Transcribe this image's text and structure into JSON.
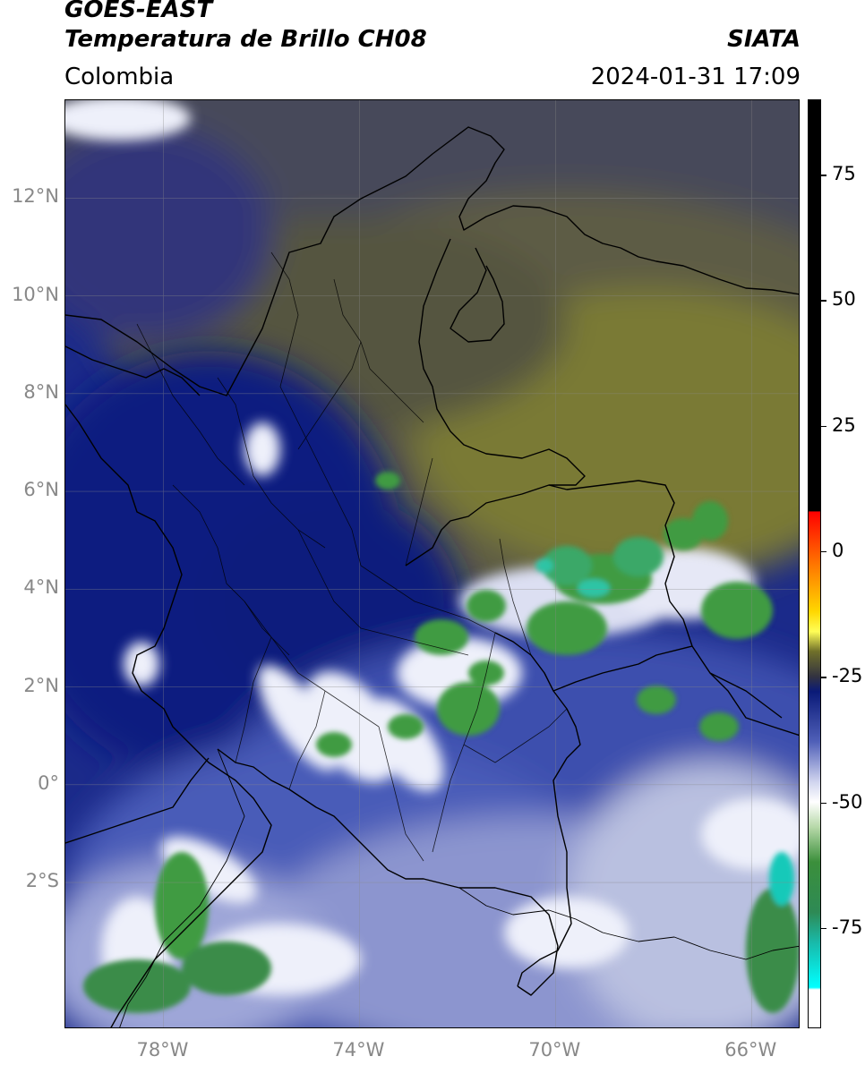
{
  "header": {
    "satellite": "GOES-EAST",
    "product": "Temperatura de Brillo CH08",
    "agency": "SIATA",
    "region": "Colombia",
    "datetime": "2024-01-31 17:09"
  },
  "map": {
    "lat_range": [
      -5.0,
      14.0
    ],
    "lon_range": [
      -80.0,
      -65.0
    ],
    "lat_ticks": [
      {
        "value": 12,
        "label": "12°N"
      },
      {
        "value": 10,
        "label": "10°N"
      },
      {
        "value": 8,
        "label": "8°N"
      },
      {
        "value": 6,
        "label": "6°N"
      },
      {
        "value": 4,
        "label": "4°N"
      },
      {
        "value": 2,
        "label": "2°N"
      },
      {
        "value": 0,
        "label": "0°"
      },
      {
        "value": -2,
        "label": "2°S"
      }
    ],
    "lon_ticks": [
      {
        "value": -78,
        "label": "78°W"
      },
      {
        "value": -74,
        "label": "74°W"
      },
      {
        "value": -70,
        "label": "70°W"
      },
      {
        "value": -66,
        "label": "66°W"
      }
    ],
    "gridlines": true,
    "colors": {
      "warm_olive": "#6e6c38",
      "gray_dark": "#4a4a4e",
      "dark_blue": "#0a1a78",
      "mid_blue": "#3f51a8",
      "light_lavender": "#c9cde6",
      "white": "#ffffff",
      "green": "#3b8f3b",
      "cyan": "#19c9b9"
    }
  },
  "colorbar": {
    "range": [
      -95,
      90
    ],
    "ticks": [
      {
        "value": 75,
        "label": "75"
      },
      {
        "value": 50,
        "label": "50"
      },
      {
        "value": 25,
        "label": "25"
      },
      {
        "value": 0,
        "label": "0"
      },
      {
        "value": -25,
        "label": "-25"
      },
      {
        "value": -50,
        "label": "-50"
      },
      {
        "value": -75,
        "label": "-75"
      }
    ]
  }
}
